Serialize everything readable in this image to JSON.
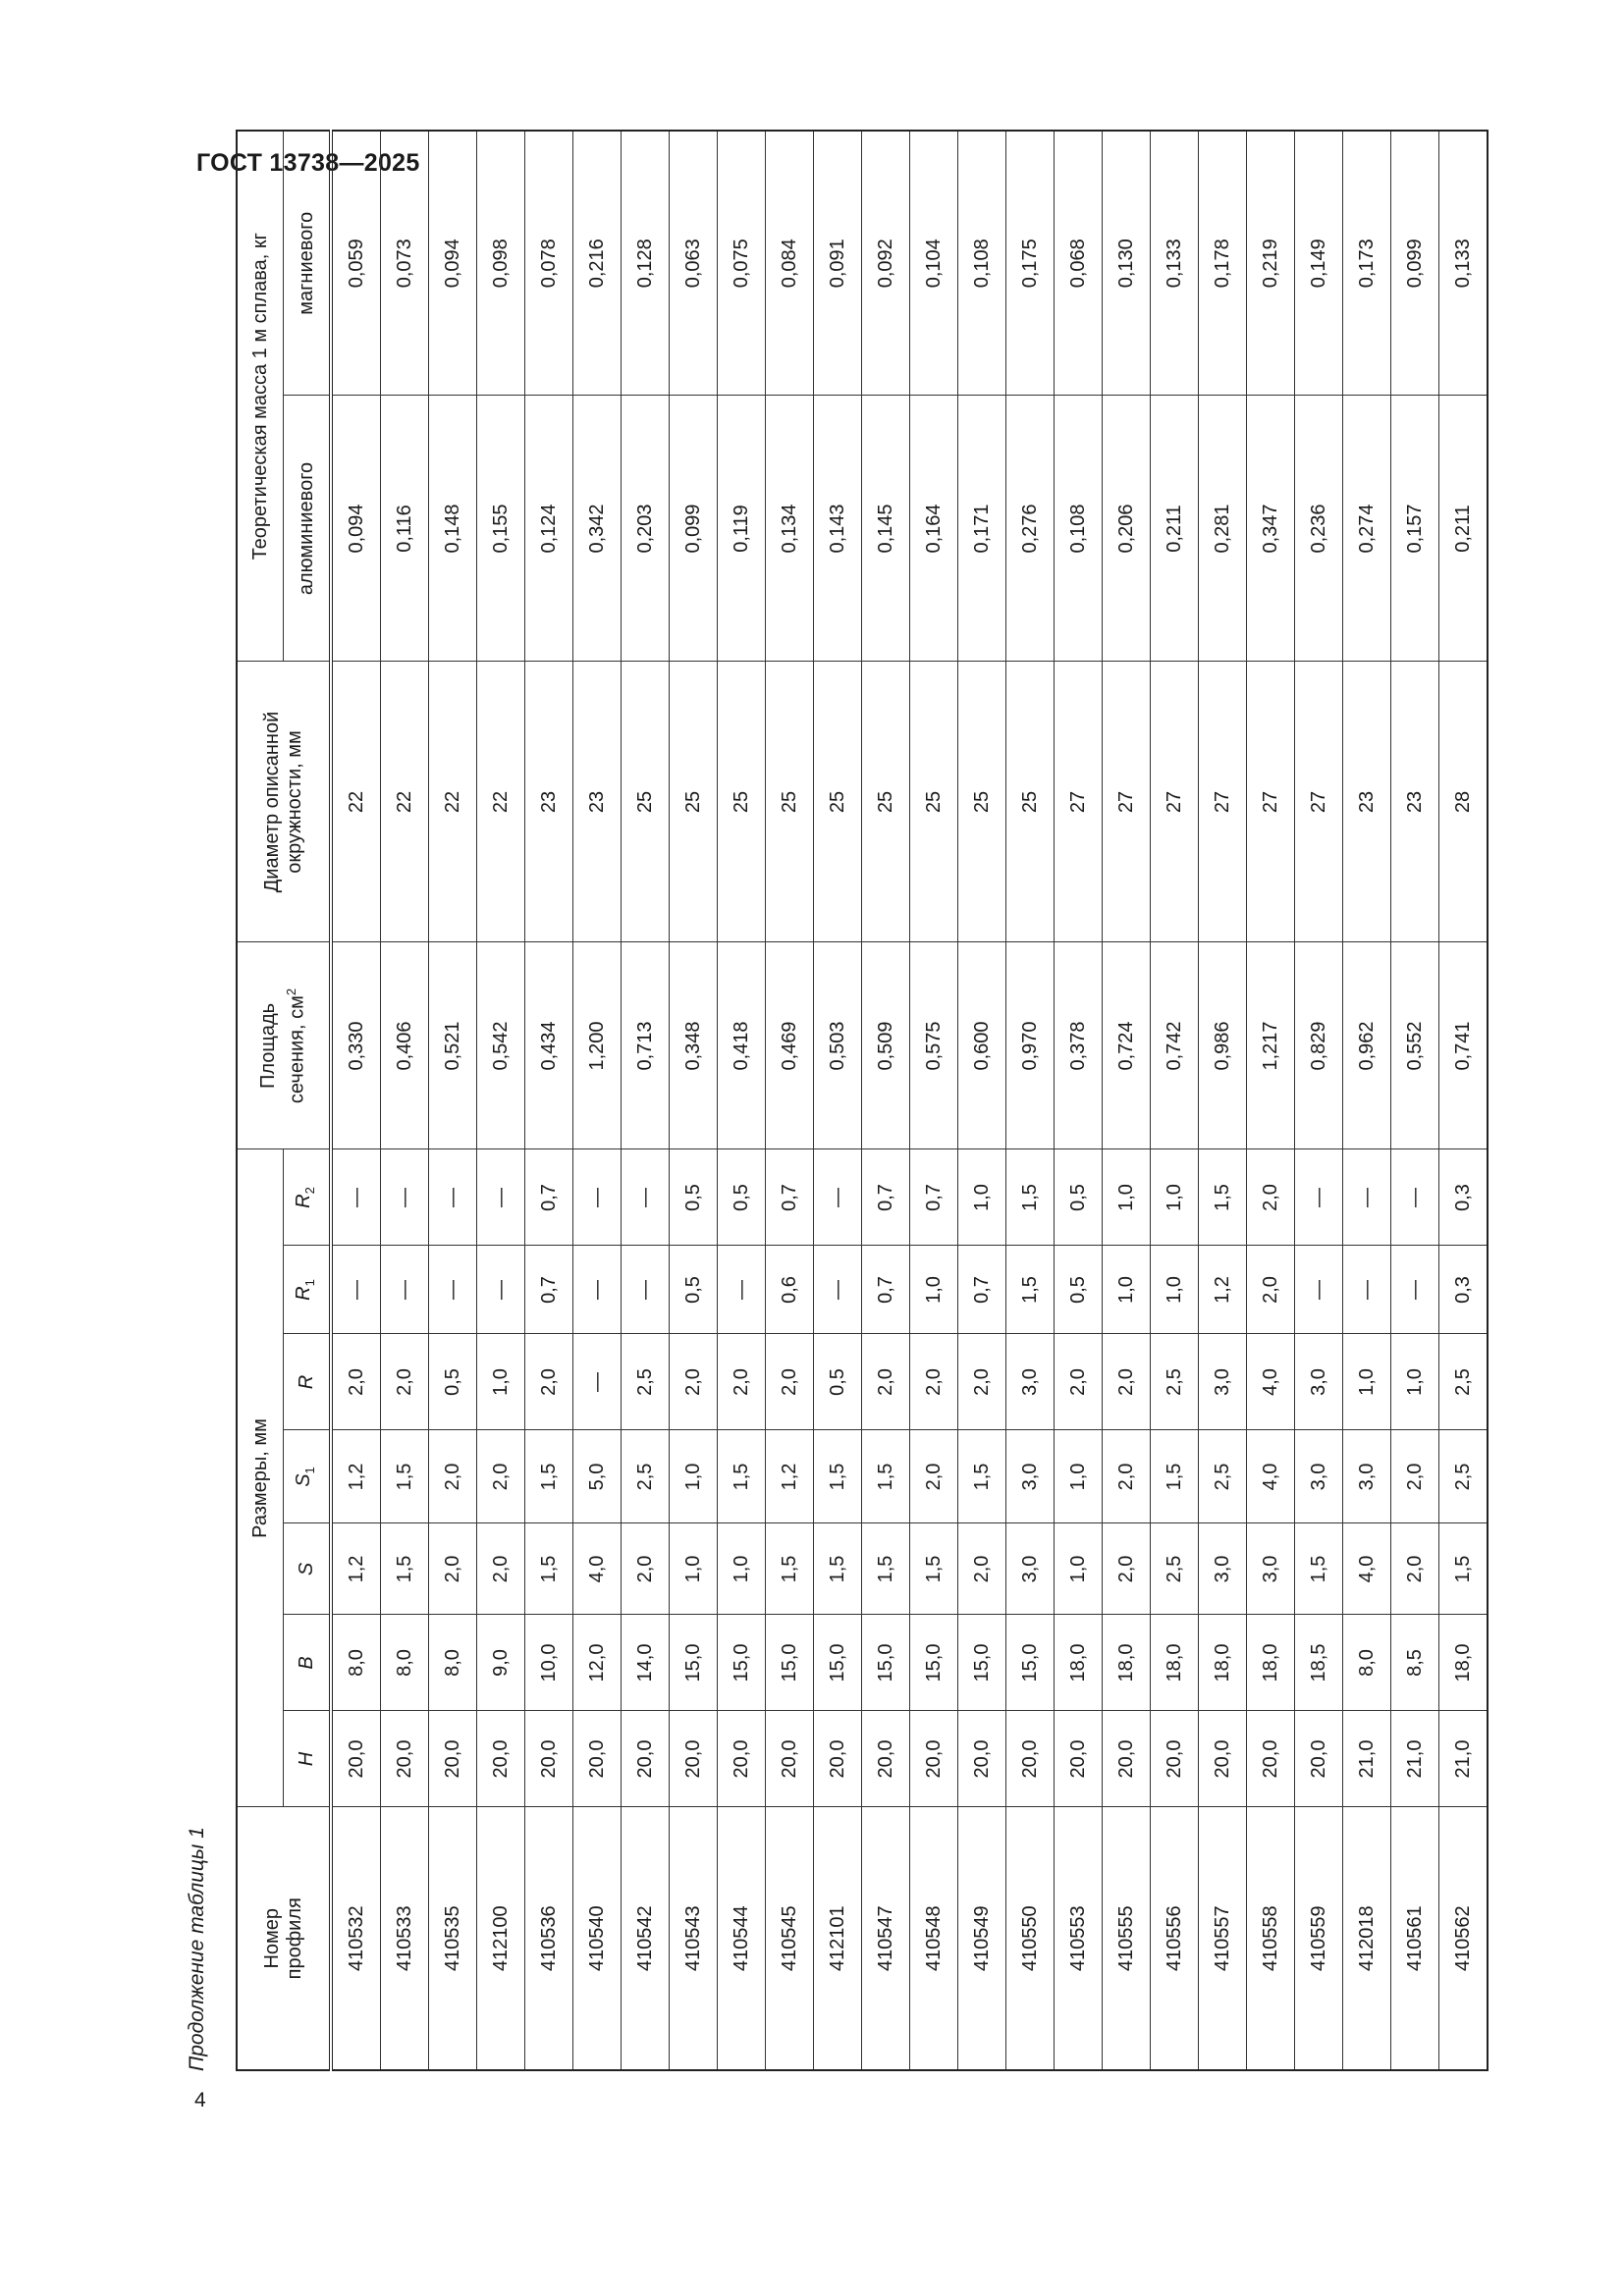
{
  "header": {
    "title": "ГОСТ 13738—2025"
  },
  "caption": "Продолжение таблицы 1",
  "page_number": "4",
  "table": {
    "col_profile": [
      "Номер",
      "профиля"
    ],
    "col_dimensions": "Размеры, мм",
    "dim_cols": [
      {
        "sym": "H",
        "sub": ""
      },
      {
        "sym": "B",
        "sub": ""
      },
      {
        "sym": "S",
        "sub": ""
      },
      {
        "sym": "S",
        "sub": "1"
      },
      {
        "sym": "R",
        "sub": ""
      },
      {
        "sym": "R",
        "sub": "1"
      },
      {
        "sym": "R",
        "sub": "2"
      }
    ],
    "col_area": [
      "Площадь",
      "сечения, см",
      "2"
    ],
    "col_diameter": [
      "Диаметр описанной",
      "окружности, мм"
    ],
    "col_mass": "Теоретическая масса 1 м сплава, кг",
    "mass_cols": [
      "алюминиевого",
      "магниевого"
    ],
    "rows": [
      [
        "410532",
        "20,0",
        "8,0",
        "1,2",
        "1,2",
        "2,0",
        "—",
        "—",
        "0,330",
        "22",
        "0,094",
        "0,059"
      ],
      [
        "410533",
        "20,0",
        "8,0",
        "1,5",
        "1,5",
        "2,0",
        "—",
        "—",
        "0,406",
        "22",
        "0,116",
        "0,073"
      ],
      [
        "410535",
        "20,0",
        "8,0",
        "2,0",
        "2,0",
        "0,5",
        "—",
        "—",
        "0,521",
        "22",
        "0,148",
        "0,094"
      ],
      [
        "412100",
        "20,0",
        "9,0",
        "2,0",
        "2,0",
        "1,0",
        "—",
        "—",
        "0,542",
        "22",
        "0,155",
        "0,098"
      ],
      [
        "410536",
        "20,0",
        "10,0",
        "1,5",
        "1,5",
        "2,0",
        "0,7",
        "0,7",
        "0,434",
        "23",
        "0,124",
        "0,078"
      ],
      [
        "410540",
        "20,0",
        "12,0",
        "4,0",
        "5,0",
        "—",
        "—",
        "—",
        "1,200",
        "23",
        "0,342",
        "0,216"
      ],
      [
        "410542",
        "20,0",
        "14,0",
        "2,0",
        "2,5",
        "2,5",
        "—",
        "—",
        "0,713",
        "25",
        "0,203",
        "0,128"
      ],
      [
        "410543",
        "20,0",
        "15,0",
        "1,0",
        "1,0",
        "2,0",
        "0,5",
        "0,5",
        "0,348",
        "25",
        "0,099",
        "0,063"
      ],
      [
        "410544",
        "20,0",
        "15,0",
        "1,0",
        "1,5",
        "2,0",
        "—",
        "0,5",
        "0,418",
        "25",
        "0,119",
        "0,075"
      ],
      [
        "410545",
        "20,0",
        "15,0",
        "1,5",
        "1,2",
        "2,0",
        "0,6",
        "0,7",
        "0,469",
        "25",
        "0,134",
        "0,084"
      ],
      [
        "412101",
        "20,0",
        "15,0",
        "1,5",
        "1,5",
        "0,5",
        "—",
        "—",
        "0,503",
        "25",
        "0,143",
        "0,091"
      ],
      [
        "410547",
        "20,0",
        "15,0",
        "1,5",
        "1,5",
        "2,0",
        "0,7",
        "0,7",
        "0,509",
        "25",
        "0,145",
        "0,092"
      ],
      [
        "410548",
        "20,0",
        "15,0",
        "1,5",
        "2,0",
        "2,0",
        "1,0",
        "0,7",
        "0,575",
        "25",
        "0,164",
        "0,104"
      ],
      [
        "410549",
        "20,0",
        "15,0",
        "2,0",
        "1,5",
        "2,0",
        "0,7",
        "1,0",
        "0,600",
        "25",
        "0,171",
        "0,108"
      ],
      [
        "410550",
        "20,0",
        "15,0",
        "3,0",
        "3,0",
        "3,0",
        "1,5",
        "1,5",
        "0,970",
        "25",
        "0,276",
        "0,175"
      ],
      [
        "410553",
        "20,0",
        "18,0",
        "1,0",
        "1,0",
        "2,0",
        "0,5",
        "0,5",
        "0,378",
        "27",
        "0,108",
        "0,068"
      ],
      [
        "410555",
        "20,0",
        "18,0",
        "2,0",
        "2,0",
        "2,0",
        "1,0",
        "1,0",
        "0,724",
        "27",
        "0,206",
        "0,130"
      ],
      [
        "410556",
        "20,0",
        "18,0",
        "2,5",
        "1,5",
        "2,5",
        "1,0",
        "1,0",
        "0,742",
        "27",
        "0,211",
        "0,133"
      ],
      [
        "410557",
        "20,0",
        "18,0",
        "3,0",
        "2,5",
        "3,0",
        "1,2",
        "1,5",
        "0,986",
        "27",
        "0,281",
        "0,178"
      ],
      [
        "410558",
        "20,0",
        "18,0",
        "3,0",
        "4,0",
        "4,0",
        "2,0",
        "2,0",
        "1,217",
        "27",
        "0,347",
        "0,219"
      ],
      [
        "410559",
        "20,0",
        "18,5",
        "1,5",
        "3,0",
        "3,0",
        "—",
        "—",
        "0,829",
        "27",
        "0,236",
        "0,149"
      ],
      [
        "412018",
        "21,0",
        "8,0",
        "4,0",
        "3,0",
        "1,0",
        "—",
        "—",
        "0,962",
        "23",
        "0,274",
        "0,173"
      ],
      [
        "410561",
        "21,0",
        "8,5",
        "2,0",
        "2,0",
        "1,0",
        "—",
        "—",
        "0,552",
        "23",
        "0,157",
        "0,099"
      ],
      [
        "410562",
        "21,0",
        "18,0",
        "1,5",
        "2,5",
        "2,5",
        "0,3",
        "0,3",
        "0,741",
        "28",
        "0,211",
        "0,133"
      ]
    ]
  }
}
